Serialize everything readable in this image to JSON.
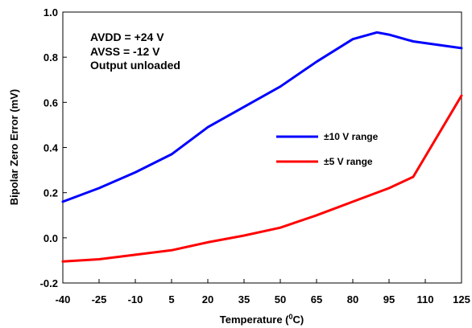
{
  "chart_data": {
    "type": "line",
    "xlabel": "Temperature (",
    "xlabel_sup": "0",
    "xlabel_end": "C)",
    "ylabel": "Bipolar Zero Error (mV)",
    "x_ticks": [
      "-40",
      "-25",
      "-10",
      "5",
      "20",
      "35",
      "50",
      "65",
      "80",
      "95",
      "110",
      "125"
    ],
    "y_ticks": [
      "-0.2",
      "0.0",
      "0.2",
      "0.4",
      "0.6",
      "0.8",
      "1.0"
    ],
    "xlim": [
      -40,
      125
    ],
    "ylim": [
      -0.2,
      1.0
    ],
    "grid": false,
    "legend_position": "center-right",
    "annotations": [
      "AVDD = +24 V",
      "AVSS = -12 V",
      "Output unloaded"
    ],
    "series": [
      {
        "name": "±10 V range",
        "color": "#0000ff",
        "x": [
          -40,
          -25,
          -10,
          5,
          20,
          35,
          50,
          65,
          80,
          90,
          95,
          105,
          125
        ],
        "y": [
          0.16,
          0.22,
          0.29,
          0.37,
          0.49,
          0.58,
          0.67,
          0.78,
          0.88,
          0.91,
          0.9,
          0.87,
          0.84
        ]
      },
      {
        "name": "±5 V range",
        "color": "#ff0000",
        "x": [
          -40,
          -25,
          -10,
          5,
          20,
          35,
          50,
          65,
          80,
          95,
          105,
          125
        ],
        "y": [
          -0.105,
          -0.095,
          -0.075,
          -0.055,
          -0.02,
          0.01,
          0.045,
          0.1,
          0.16,
          0.22,
          0.27,
          0.63
        ]
      }
    ]
  }
}
